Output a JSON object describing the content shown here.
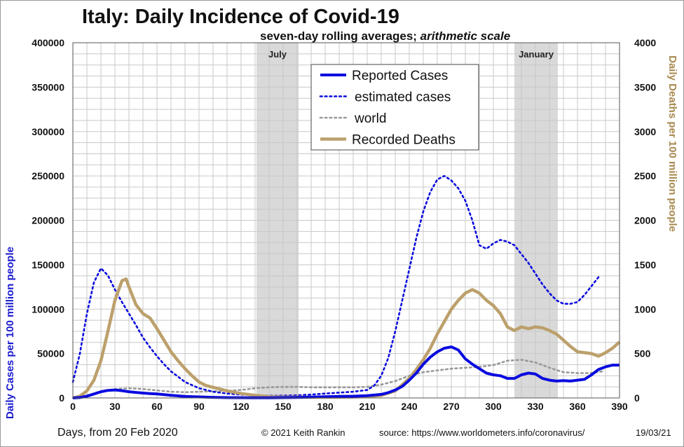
{
  "chart_data": {
    "type": "line",
    "title": "Italy: Daily Incidence of Covid-19",
    "subtitle_main": "seven-day rolling averages; ",
    "subtitle_italic": "arithmetic scale",
    "xlabel": "Days, from 20 Feb 2020",
    "ylabel_left": "Daily Cases per 100 million people",
    "ylabel_right": "Daily Deaths per 100 million people",
    "xlim": [
      0,
      390
    ],
    "ylim_left": [
      0,
      400000
    ],
    "ylim_right": [
      0,
      4000
    ],
    "x_ticks": [
      0,
      30,
      60,
      90,
      120,
      150,
      180,
      210,
      240,
      270,
      300,
      330,
      360,
      390
    ],
    "y_ticks_left": [
      0,
      50000,
      100000,
      150000,
      200000,
      250000,
      300000,
      350000,
      400000
    ],
    "y_ticks_right": [
      0,
      500,
      1000,
      1500,
      2000,
      2500,
      3000,
      3500,
      4000
    ],
    "grid": true,
    "legend_position": "top-center",
    "shaded_bands": [
      {
        "label": "July",
        "x_start": 131,
        "x_end": 161
      },
      {
        "label": "January",
        "x_start": 315,
        "x_end": 346
      }
    ],
    "series": [
      {
        "name": "Reported Cases",
        "axis": "left",
        "color": "#0a0adf",
        "style": "solid",
        "points": [
          [
            0,
            0
          ],
          [
            5,
            500
          ],
          [
            10,
            2000
          ],
          [
            15,
            4500
          ],
          [
            20,
            7000
          ],
          [
            25,
            8500
          ],
          [
            30,
            9000
          ],
          [
            35,
            8200
          ],
          [
            40,
            7000
          ],
          [
            45,
            6200
          ],
          [
            50,
            5500
          ],
          [
            55,
            5000
          ],
          [
            60,
            4500
          ],
          [
            70,
            3000
          ],
          [
            80,
            1800
          ],
          [
            90,
            1200
          ],
          [
            100,
            700
          ],
          [
            110,
            400
          ],
          [
            120,
            300
          ],
          [
            130,
            200
          ],
          [
            140,
            250
          ],
          [
            150,
            400
          ],
          [
            160,
            600
          ],
          [
            170,
            1000
          ],
          [
            180,
            1400
          ],
          [
            190,
            1800
          ],
          [
            200,
            2000
          ],
          [
            210,
            2500
          ],
          [
            220,
            4000
          ],
          [
            225,
            6000
          ],
          [
            230,
            9000
          ],
          [
            235,
            13000
          ],
          [
            240,
            20000
          ],
          [
            245,
            28000
          ],
          [
            250,
            38000
          ],
          [
            255,
            46000
          ],
          [
            260,
            52000
          ],
          [
            265,
            56000
          ],
          [
            270,
            57500
          ],
          [
            275,
            54000
          ],
          [
            280,
            44000
          ],
          [
            285,
            38000
          ],
          [
            290,
            33000
          ],
          [
            295,
            28000
          ],
          [
            300,
            26000
          ],
          [
            305,
            25000
          ],
          [
            310,
            22000
          ],
          [
            315,
            22000
          ],
          [
            320,
            26000
          ],
          [
            325,
            28000
          ],
          [
            330,
            27000
          ],
          [
            335,
            22000
          ],
          [
            340,
            20000
          ],
          [
            345,
            19000
          ],
          [
            350,
            19500
          ],
          [
            355,
            19000
          ],
          [
            360,
            20000
          ],
          [
            365,
            21000
          ],
          [
            370,
            26000
          ],
          [
            375,
            32000
          ],
          [
            380,
            35000
          ],
          [
            385,
            37000
          ],
          [
            390,
            37000
          ]
        ]
      },
      {
        "name": "estimated cases",
        "axis": "left",
        "color": "#0a0adf",
        "style": "dotted",
        "points": [
          [
            0,
            18000
          ],
          [
            5,
            50000
          ],
          [
            10,
            95000
          ],
          [
            15,
            130000
          ],
          [
            20,
            146000
          ],
          [
            25,
            138000
          ],
          [
            30,
            122000
          ],
          [
            35,
            108000
          ],
          [
            40,
            95000
          ],
          [
            45,
            82000
          ],
          [
            50,
            68000
          ],
          [
            55,
            57000
          ],
          [
            60,
            47000
          ],
          [
            65,
            38000
          ],
          [
            70,
            30000
          ],
          [
            75,
            24000
          ],
          [
            80,
            18000
          ],
          [
            90,
            11000
          ],
          [
            100,
            7000
          ],
          [
            110,
            5000
          ],
          [
            120,
            3800
          ],
          [
            130,
            3000
          ],
          [
            140,
            2500
          ],
          [
            150,
            2600
          ],
          [
            160,
            3000
          ],
          [
            170,
            3800
          ],
          [
            180,
            5000
          ],
          [
            190,
            6000
          ],
          [
            200,
            7000
          ],
          [
            210,
            9000
          ],
          [
            215,
            14000
          ],
          [
            220,
            25000
          ],
          [
            225,
            45000
          ],
          [
            230,
            75000
          ],
          [
            235,
            110000
          ],
          [
            240,
            145000
          ],
          [
            245,
            180000
          ],
          [
            250,
            210000
          ],
          [
            255,
            232000
          ],
          [
            260,
            246000
          ],
          [
            265,
            250000
          ],
          [
            270,
            245000
          ],
          [
            275,
            236000
          ],
          [
            280,
            222000
          ],
          [
            285,
            200000
          ],
          [
            290,
            172000
          ],
          [
            295,
            168000
          ],
          [
            300,
            174000
          ],
          [
            305,
            178000
          ],
          [
            310,
            176000
          ],
          [
            315,
            172000
          ],
          [
            320,
            162000
          ],
          [
            325,
            152000
          ],
          [
            330,
            140000
          ],
          [
            335,
            128000
          ],
          [
            340,
            118000
          ],
          [
            345,
            110000
          ],
          [
            350,
            106000
          ],
          [
            355,
            106000
          ],
          [
            360,
            108000
          ],
          [
            365,
            116000
          ],
          [
            370,
            126000
          ],
          [
            375,
            136000
          ]
        ]
      },
      {
        "name": "world",
        "axis": "left",
        "color": "#999999",
        "style": "dotted",
        "points": [
          [
            0,
            0
          ],
          [
            10,
            3000
          ],
          [
            20,
            7000
          ],
          [
            30,
            10000
          ],
          [
            40,
            11000
          ],
          [
            50,
            10000
          ],
          [
            60,
            8500
          ],
          [
            70,
            7000
          ],
          [
            80,
            6500
          ],
          [
            90,
            7000
          ],
          [
            100,
            7500
          ],
          [
            110,
            8000
          ],
          [
            120,
            9000
          ],
          [
            130,
            11000
          ],
          [
            140,
            12000
          ],
          [
            150,
            12500
          ],
          [
            160,
            12500
          ],
          [
            170,
            12000
          ],
          [
            180,
            12000
          ],
          [
            190,
            12000
          ],
          [
            200,
            12000
          ],
          [
            210,
            12500
          ],
          [
            220,
            15000
          ],
          [
            230,
            19000
          ],
          [
            240,
            25000
          ],
          [
            250,
            29000
          ],
          [
            260,
            31000
          ],
          [
            270,
            33000
          ],
          [
            280,
            34000
          ],
          [
            290,
            35000
          ],
          [
            300,
            37000
          ],
          [
            310,
            42000
          ],
          [
            320,
            43000
          ],
          [
            330,
            40000
          ],
          [
            340,
            34000
          ],
          [
            350,
            29000
          ],
          [
            360,
            28000
          ],
          [
            370,
            28000
          ],
          [
            378,
            30000
          ]
        ]
      },
      {
        "name": "Recorded Deaths",
        "axis": "right",
        "color": "#bca06c",
        "style": "solid",
        "points": [
          [
            0,
            0
          ],
          [
            5,
            20
          ],
          [
            10,
            80
          ],
          [
            15,
            200
          ],
          [
            20,
            420
          ],
          [
            25,
            750
          ],
          [
            30,
            1100
          ],
          [
            35,
            1320
          ],
          [
            38,
            1340
          ],
          [
            40,
            1250
          ],
          [
            45,
            1050
          ],
          [
            50,
            950
          ],
          [
            55,
            900
          ],
          [
            60,
            780
          ],
          [
            65,
            650
          ],
          [
            70,
            520
          ],
          [
            75,
            420
          ],
          [
            80,
            330
          ],
          [
            85,
            250
          ],
          [
            90,
            180
          ],
          [
            95,
            140
          ],
          [
            100,
            120
          ],
          [
            105,
            100
          ],
          [
            110,
            80
          ],
          [
            120,
            50
          ],
          [
            130,
            30
          ],
          [
            140,
            15
          ],
          [
            150,
            10
          ],
          [
            160,
            10
          ],
          [
            170,
            8
          ],
          [
            180,
            8
          ],
          [
            190,
            10
          ],
          [
            200,
            12
          ],
          [
            210,
            15
          ],
          [
            220,
            30
          ],
          [
            230,
            80
          ],
          [
            235,
            150
          ],
          [
            240,
            220
          ],
          [
            245,
            320
          ],
          [
            250,
            430
          ],
          [
            255,
            560
          ],
          [
            260,
            720
          ],
          [
            265,
            860
          ],
          [
            270,
            1000
          ],
          [
            275,
            1100
          ],
          [
            280,
            1180
          ],
          [
            285,
            1220
          ],
          [
            290,
            1180
          ],
          [
            295,
            1100
          ],
          [
            300,
            1040
          ],
          [
            305,
            950
          ],
          [
            310,
            800
          ],
          [
            315,
            760
          ],
          [
            320,
            800
          ],
          [
            325,
            780
          ],
          [
            330,
            800
          ],
          [
            335,
            790
          ],
          [
            340,
            760
          ],
          [
            345,
            720
          ],
          [
            350,
            650
          ],
          [
            355,
            580
          ],
          [
            360,
            520
          ],
          [
            365,
            510
          ],
          [
            370,
            500
          ],
          [
            375,
            470
          ],
          [
            380,
            510
          ],
          [
            385,
            560
          ],
          [
            390,
            630
          ]
        ]
      }
    ],
    "footer": {
      "copyright": "© 2021  Keith Rankin",
      "source": "source:  https://www.worldometers.info/coronavirus/",
      "date": "19/03/21"
    }
  }
}
